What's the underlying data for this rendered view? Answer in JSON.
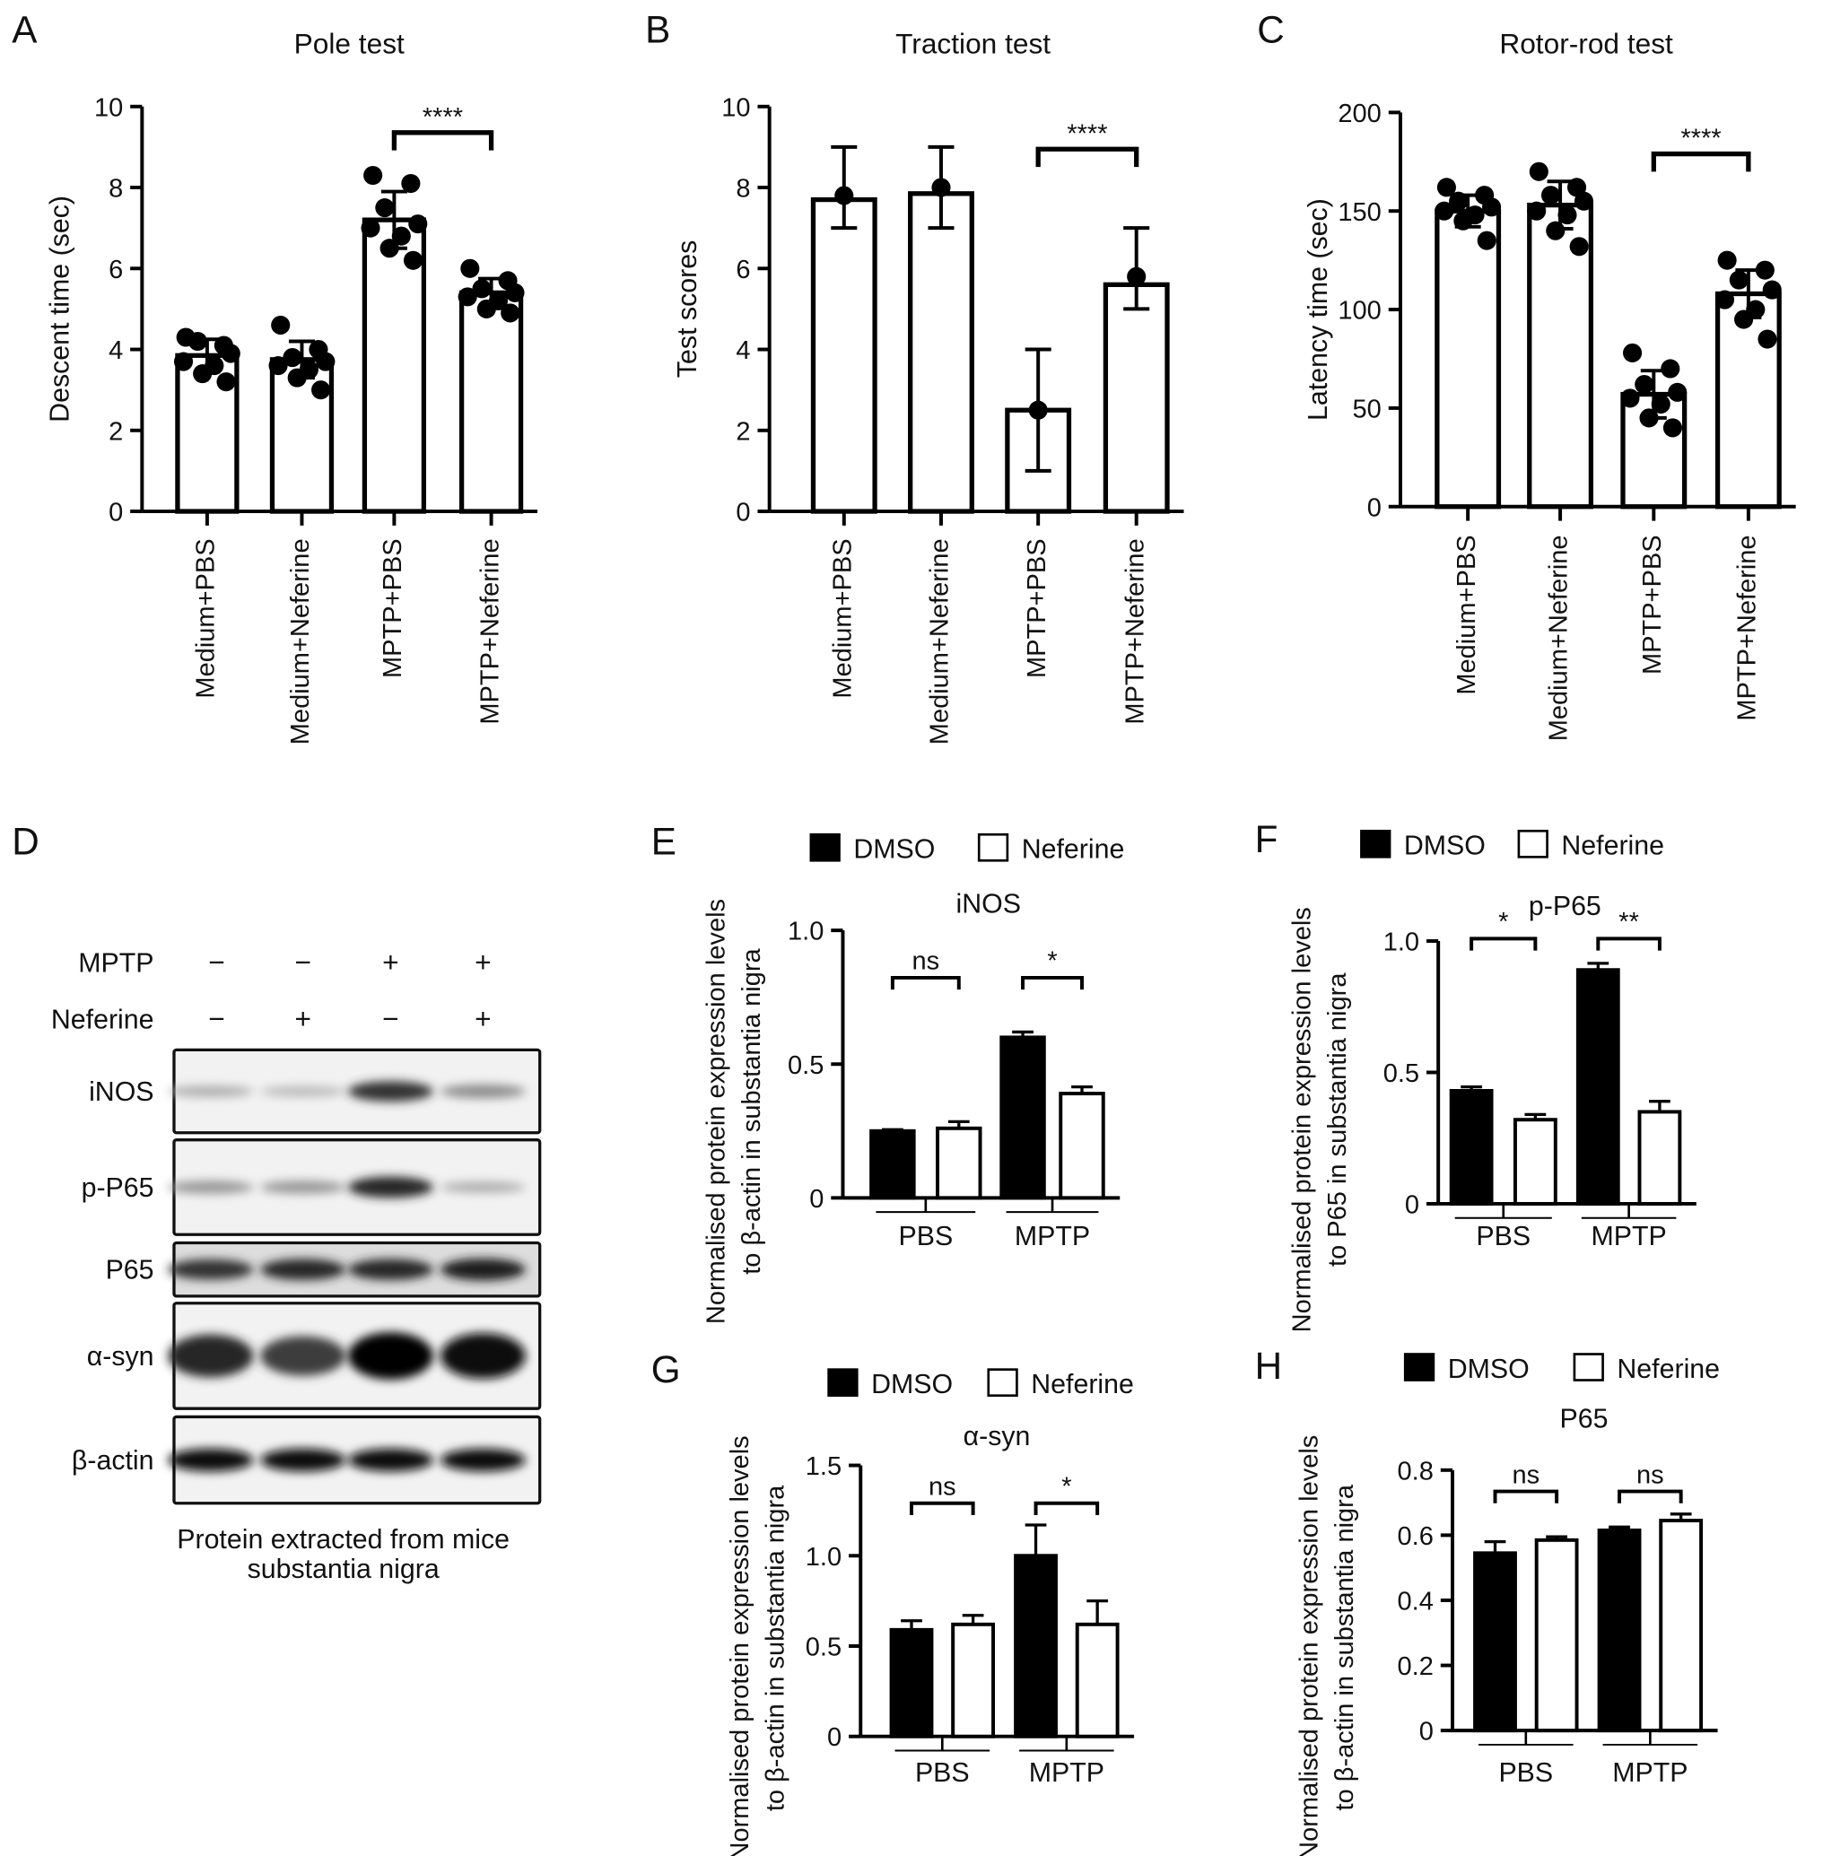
{
  "chart_data": [
    {
      "panel": "A",
      "type": "bar",
      "title": "Pole test",
      "ylabel": "Descent time (sec)",
      "ylim": [
        0,
        10
      ],
      "yticks": [
        0,
        2,
        4,
        6,
        8,
        10
      ],
      "categories": [
        "Medium+PBS",
        "Medium+Neferine",
        "MPTP+PBS",
        "MPTP+Neferine"
      ],
      "values": [
        3.85,
        3.75,
        7.2,
        5.4
      ],
      "errors": [
        0.4,
        0.45,
        0.7,
        0.35
      ],
      "points": [
        [
          4.3,
          4.1,
          4.2,
          3.9,
          3.7,
          3.6,
          3.4,
          3.2
        ],
        [
          4.6,
          4.0,
          3.8,
          3.7,
          3.6,
          3.5,
          3.3,
          3.0
        ],
        [
          8.3,
          8.1,
          7.5,
          7.1,
          7.0,
          6.8,
          6.5,
          6.2
        ],
        [
          6.0,
          5.7,
          5.5,
          5.4,
          5.3,
          5.2,
          5.0,
          4.9
        ]
      ],
      "significance": [
        {
          "between": [
            2,
            3
          ],
          "label": "****"
        }
      ]
    },
    {
      "panel": "B",
      "type": "bar",
      "title": "Traction test",
      "ylabel": "Test scores",
      "ylim": [
        0,
        10
      ],
      "yticks": [
        0,
        2,
        4,
        6,
        8,
        10
      ],
      "categories": [
        "Medium+PBS",
        "Medium+Neferine",
        "MPTP+PBS",
        "MPTP+Neferine"
      ],
      "values": [
        7.7,
        7.85,
        2.5,
        5.6
      ],
      "error_ranges": [
        [
          7,
          9
        ],
        [
          7,
          9
        ],
        [
          1,
          4
        ],
        [
          5,
          7
        ]
      ],
      "points": [
        [
          7.8
        ],
        [
          8.0
        ],
        [
          2.5
        ],
        [
          5.8
        ]
      ],
      "significance": [
        {
          "between": [
            2,
            3
          ],
          "label": "****"
        }
      ]
    },
    {
      "panel": "C",
      "type": "bar",
      "title": "Rotor-rod test",
      "ylabel": "Latency time (sec)",
      "ylim": [
        0,
        200
      ],
      "yticks": [
        0,
        50,
        100,
        150,
        200
      ],
      "categories": [
        "Medium+PBS",
        "Medium+Neferine",
        "MPTP+PBS",
        "MPTP+Neferine"
      ],
      "values": [
        150,
        153,
        57,
        108
      ],
      "errors": [
        8,
        12,
        12,
        12
      ],
      "points": [
        [
          162,
          158,
          155,
          152,
          150,
          148,
          145,
          135
        ],
        [
          170,
          162,
          158,
          155,
          150,
          148,
          140,
          132
        ],
        [
          78,
          70,
          62,
          58,
          55,
          52,
          45,
          40
        ],
        [
          125,
          120,
          115,
          110,
          105,
          100,
          95,
          85
        ]
      ],
      "significance": [
        {
          "between": [
            2,
            3
          ],
          "label": "****"
        }
      ]
    },
    {
      "panel": "E",
      "type": "bar",
      "title": "iNOS",
      "ylabel": [
        "Normalised protein expression levels",
        "to β-actin in substantia nigra"
      ],
      "ylim": [
        0,
        1.0
      ],
      "yticks": [
        "0",
        "0.5",
        "1.0"
      ],
      "groups": [
        "PBS",
        "MPTP"
      ],
      "legend": [
        "DMSO",
        "Neferine"
      ],
      "series": [
        {
          "name": "DMSO",
          "values": [
            0.25,
            0.6
          ],
          "errors": [
            0.005,
            0.02
          ]
        },
        {
          "name": "Neferine",
          "values": [
            0.26,
            0.39
          ],
          "errors": [
            0.025,
            0.025
          ]
        }
      ],
      "significance": [
        {
          "group": "PBS",
          "label": "ns"
        },
        {
          "group": "MPTP",
          "label": "*"
        }
      ]
    },
    {
      "panel": "F",
      "type": "bar",
      "title": "p-P65",
      "ylabel": [
        "Normalised protein expression levels",
        "to P65 in substantia nigra"
      ],
      "ylim": [
        0,
        1.0
      ],
      "yticks": [
        "0",
        "0.5",
        "1.0"
      ],
      "groups": [
        "PBS",
        "MPTP"
      ],
      "legend": [
        "DMSO",
        "Neferine"
      ],
      "series": [
        {
          "name": "DMSO",
          "values": [
            0.43,
            0.89
          ],
          "errors": [
            0.015,
            0.025
          ]
        },
        {
          "name": "Neferine",
          "values": [
            0.32,
            0.35
          ],
          "errors": [
            0.02,
            0.04
          ]
        }
      ],
      "significance": [
        {
          "group": "PBS",
          "label": "*"
        },
        {
          "group": "MPTP",
          "label": "**"
        }
      ]
    },
    {
      "panel": "G",
      "type": "bar",
      "title": "α-syn",
      "ylabel": [
        "Normalised protein expression levels",
        "to β-actin in substantia nigra"
      ],
      "ylim": [
        0,
        1.5
      ],
      "yticks": [
        "0",
        "0.5",
        "1.0",
        "1.5"
      ],
      "groups": [
        "PBS",
        "MPTP"
      ],
      "legend": [
        "DMSO",
        "Neferine"
      ],
      "series": [
        {
          "name": "DMSO",
          "values": [
            0.59,
            1.0
          ],
          "errors": [
            0.05,
            0.17
          ]
        },
        {
          "name": "Neferine",
          "values": [
            0.62,
            0.62
          ],
          "errors": [
            0.05,
            0.13
          ]
        }
      ],
      "significance": [
        {
          "group": "PBS",
          "label": "ns"
        },
        {
          "group": "MPTP",
          "label": "*"
        }
      ]
    },
    {
      "panel": "H",
      "type": "bar",
      "title": "P65",
      "ylabel": [
        "Normalised protein expression levels",
        "to β-actin in substantia nigra"
      ],
      "ylim": [
        0,
        0.8
      ],
      "yticks": [
        "0",
        "0.2",
        "0.4",
        "0.6",
        "0.8"
      ],
      "groups": [
        "PBS",
        "MPTP"
      ],
      "legend": [
        "DMSO",
        "Neferine"
      ],
      "series": [
        {
          "name": "DMSO",
          "values": [
            0.545,
            0.615
          ],
          "errors": [
            0.035,
            0.01
          ]
        },
        {
          "name": "Neferine",
          "values": [
            0.585,
            0.645
          ],
          "errors": [
            0.01,
            0.02
          ]
        }
      ],
      "significance": [
        {
          "group": "PBS",
          "label": "ns"
        },
        {
          "group": "MPTP",
          "label": "ns"
        }
      ]
    }
  ],
  "blot": {
    "panel": "D",
    "conditions": [
      {
        "label": "MPTP",
        "signs": [
          "−",
          "−",
          "+",
          "+"
        ]
      },
      {
        "label": "Neferine",
        "signs": [
          "−",
          "+",
          "−",
          "+"
        ]
      }
    ],
    "rows": [
      {
        "label": "iNOS",
        "intensity": [
          0.25,
          0.2,
          0.8,
          0.4
        ]
      },
      {
        "label": "p-P65",
        "intensity": [
          0.35,
          0.35,
          0.85,
          0.25
        ]
      },
      {
        "label": "P65",
        "intensity": [
          0.8,
          0.85,
          0.85,
          0.9
        ]
      },
      {
        "label": "α-syn",
        "intensity": [
          0.85,
          0.75,
          1.0,
          0.95
        ]
      },
      {
        "label": "β-actin",
        "intensity": [
          0.95,
          0.95,
          0.95,
          0.95
        ]
      }
    ],
    "caption": [
      "Protein extracted from mice",
      "substantia nigra"
    ]
  }
}
